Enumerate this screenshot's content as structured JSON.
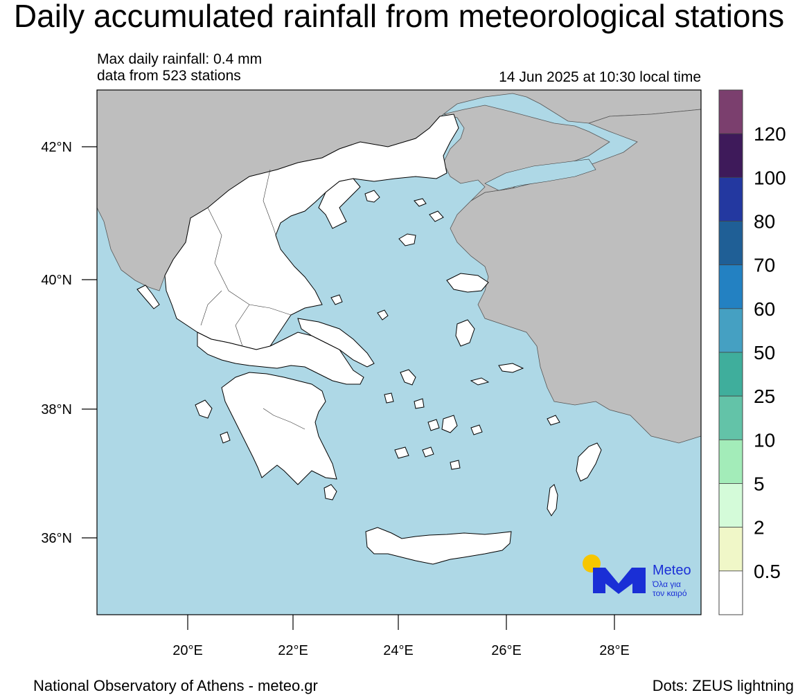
{
  "title": "Daily accumulated rainfall from meteorological stations",
  "subtitle": {
    "max_rainfall": "Max daily rainfall: 0.4 mm",
    "stations": "data from 523 stations",
    "timestamp": "14 Jun 2025 at 10:30 local time"
  },
  "axes": {
    "lat_labels": [
      "42°N",
      "40°N",
      "38°N",
      "36°N"
    ],
    "lon_labels": [
      "20°E",
      "22°E",
      "24°E",
      "26°E",
      "28°E"
    ]
  },
  "legend": {
    "labels": [
      "120",
      "100",
      "80",
      "70",
      "60",
      "50",
      "25",
      "10",
      "5",
      "2",
      "0.5"
    ],
    "colors": [
      "#7b3f6e",
      "#3e1a5a",
      "#2338a0",
      "#1f5f96",
      "#2381c2",
      "#45a0c2",
      "#3fae9c",
      "#63c3a8",
      "#a3ecb9",
      "#d4fbd9",
      "#f0f7c8",
      "#ffffff"
    ]
  },
  "colors": {
    "sea": "#aed8e6",
    "land_greece": "#ffffff",
    "land_neighbors": "#bebebe"
  },
  "logo": {
    "brand": "Meteo",
    "tagline_1": "Όλα για",
    "tagline_2": "τον καιρό"
  },
  "footer": {
    "left": "National Observatory of Athens - meteo.gr",
    "right": "Dots: ZEUS lightning"
  }
}
